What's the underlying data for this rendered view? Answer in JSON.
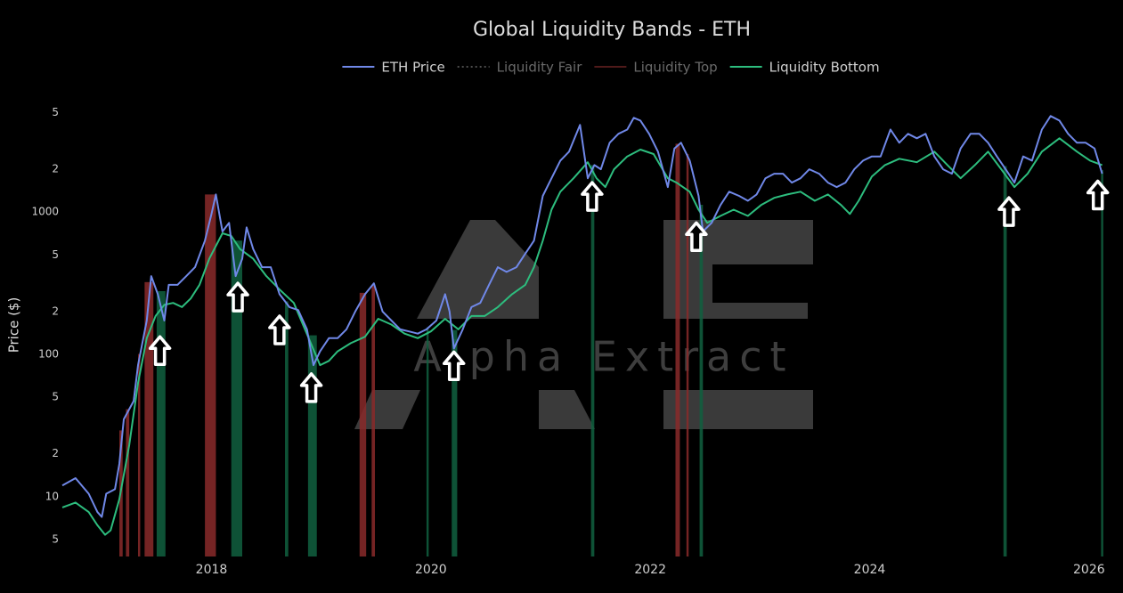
{
  "chart_data": {
    "type": "line",
    "title": "Global Liquidity Bands - ETH",
    "y_label": "Price ($)",
    "watermark": "Alpha Extract",
    "ylog": true,
    "grid": false,
    "legend": "top",
    "xlim": [
      2016.64,
      2026.18
    ],
    "xticks": [
      2018,
      2020,
      2022,
      2024,
      2026
    ],
    "ylim": [
      3.8,
      5900
    ],
    "yticks": [
      5,
      10,
      {
        "value": 20,
        "label": "2"
      },
      {
        "value": 50,
        "label": "5"
      },
      100,
      {
        "value": 200,
        "label": "2"
      },
      {
        "value": 500,
        "label": "5"
      },
      1000,
      {
        "value": 2000,
        "label": "2"
      },
      {
        "value": 5000,
        "label": "5"
      }
    ],
    "series": [
      {
        "name": "ETH Price",
        "color": "#7088e8",
        "x": [
          2016.64,
          2016.76,
          2016.88,
          2016.96,
          2017.0,
          2017.04,
          2017.12,
          2017.16,
          2017.2,
          2017.29,
          2017.33,
          2017.41,
          2017.45,
          2017.51,
          2017.57,
          2017.61,
          2017.69,
          2017.77,
          2017.85,
          2017.94,
          2018.0,
          2018.04,
          2018.1,
          2018.16,
          2018.22,
          2018.28,
          2018.32,
          2018.38,
          2018.46,
          2018.54,
          2018.62,
          2018.71,
          2018.79,
          2018.87,
          2018.93,
          2018.99,
          2019.07,
          2019.15,
          2019.23,
          2019.31,
          2019.4,
          2019.48,
          2019.56,
          2019.64,
          2019.72,
          2019.8,
          2019.88,
          2019.96,
          2020.05,
          2020.13,
          2020.17,
          2020.21,
          2020.29,
          2020.37,
          2020.45,
          2020.53,
          2020.61,
          2020.69,
          2020.78,
          2020.86,
          2020.94,
          2021.02,
          2021.1,
          2021.18,
          2021.26,
          2021.36,
          2021.43,
          2021.49,
          2021.55,
          2021.63,
          2021.71,
          2021.79,
          2021.85,
          2021.91,
          2021.99,
          2022.07,
          2022.16,
          2022.22,
          2022.28,
          2022.36,
          2022.44,
          2022.48,
          2022.56,
          2022.64,
          2022.72,
          2022.81,
          2022.89,
          2022.97,
          2023.05,
          2023.13,
          2023.21,
          2023.29,
          2023.37,
          2023.45,
          2023.54,
          2023.62,
          2023.7,
          2023.78,
          2023.86,
          2023.94,
          2024.02,
          2024.1,
          2024.19,
          2024.27,
          2024.35,
          2024.43,
          2024.51,
          2024.59,
          2024.67,
          2024.75,
          2024.83,
          2024.92,
          2025.0,
          2025.08,
          2025.16,
          2025.24,
          2025.32,
          2025.4,
          2025.48,
          2025.57,
          2025.65,
          2025.73,
          2025.81,
          2025.89,
          2025.97,
          2026.05,
          2026.12
        ],
        "values": [
          12,
          13.5,
          10.5,
          7.8,
          7.2,
          10.5,
          11.3,
          17,
          35,
          47,
          84,
          173,
          355,
          265,
          173,
          308,
          308,
          355,
          410,
          630,
          970,
          1330,
          730,
          840,
          355,
          470,
          780,
          550,
          410,
          410,
          265,
          215,
          205,
          150,
          84,
          105,
          130,
          130,
          150,
          200,
          265,
          316,
          200,
          173,
          150,
          145,
          140,
          150,
          173,
          265,
          200,
          110,
          150,
          215,
          230,
          308,
          410,
          380,
          410,
          510,
          630,
          1300,
          1730,
          2300,
          2660,
          4100,
          1730,
          2140,
          2000,
          3070,
          3550,
          3800,
          4600,
          4400,
          3550,
          2660,
          1500,
          2800,
          3070,
          2300,
          1300,
          730,
          840,
          1120,
          1390,
          1300,
          1200,
          1330,
          1730,
          1860,
          1860,
          1610,
          1730,
          2000,
          1860,
          1610,
          1500,
          1610,
          2000,
          2300,
          2460,
          2460,
          3800,
          3070,
          3550,
          3300,
          3550,
          2460,
          2000,
          1860,
          2800,
          3550,
          3550,
          3070,
          2460,
          2000,
          1610,
          2460,
          2300,
          3800,
          4730,
          4400,
          3550,
          3070,
          3070,
          2800,
          1860
        ]
      },
      {
        "name": "Liquidity Fair",
        "color": "#9a9a9a",
        "dash": "dot",
        "visible": "legendonly"
      },
      {
        "name": "Liquidity Top",
        "color": "#a03434",
        "visible": "legendonly"
      },
      {
        "name": "Liquidity Bottom",
        "color": "#2dbd7e",
        "x": [
          2016.64,
          2016.76,
          2016.88,
          2016.96,
          2017.03,
          2017.08,
          2017.16,
          2017.25,
          2017.33,
          2017.41,
          2017.49,
          2017.57,
          2017.65,
          2017.73,
          2017.81,
          2017.89,
          2017.98,
          2018.1,
          2018.18,
          2018.26,
          2018.38,
          2018.5,
          2018.62,
          2018.75,
          2018.87,
          2018.99,
          2019.07,
          2019.15,
          2019.27,
          2019.4,
          2019.52,
          2019.64,
          2019.76,
          2019.88,
          2020.0,
          2020.13,
          2020.25,
          2020.37,
          2020.49,
          2020.61,
          2020.74,
          2020.86,
          2020.94,
          2021.02,
          2021.1,
          2021.18,
          2021.3,
          2021.43,
          2021.51,
          2021.59,
          2021.67,
          2021.79,
          2021.91,
          2022.03,
          2022.16,
          2022.24,
          2022.36,
          2022.44,
          2022.52,
          2022.64,
          2022.76,
          2022.89,
          2023.01,
          2023.13,
          2023.25,
          2023.37,
          2023.5,
          2023.62,
          2023.74,
          2023.82,
          2023.9,
          2024.02,
          2024.14,
          2024.27,
          2024.43,
          2024.59,
          2024.71,
          2024.83,
          2024.96,
          2025.08,
          2025.2,
          2025.32,
          2025.44,
          2025.57,
          2025.73,
          2025.89,
          2026.01,
          2026.12
        ],
        "values": [
          8.4,
          9.1,
          7.8,
          6.3,
          5.4,
          5.8,
          9.6,
          23,
          63,
          130,
          186,
          223,
          230,
          215,
          247,
          308,
          470,
          710,
          680,
          550,
          470,
          355,
          286,
          230,
          139,
          84,
          90,
          105,
          120,
          133,
          178,
          162,
          140,
          130,
          145,
          178,
          150,
          186,
          186,
          215,
          265,
          308,
          410,
          630,
          1040,
          1390,
          1730,
          2240,
          1730,
          1500,
          2000,
          2460,
          2750,
          2560,
          1730,
          1610,
          1390,
          1040,
          840,
          940,
          1040,
          940,
          1120,
          1260,
          1330,
          1390,
          1200,
          1330,
          1120,
          970,
          1200,
          1780,
          2140,
          2370,
          2240,
          2660,
          2140,
          1730,
          2140,
          2660,
          2000,
          1500,
          1860,
          2660,
          3300,
          2660,
          2300,
          2140
        ]
      }
    ],
    "top_signals": {
      "color": "#8a2a2a",
      "ranges": [
        [
          2017.16,
          2017.19
        ],
        [
          2017.22,
          2017.25
        ],
        [
          2017.33,
          2017.35
        ],
        [
          2017.39,
          2017.47
        ],
        [
          2017.94,
          2018.04
        ],
        [
          2019.35,
          2019.41
        ],
        [
          2019.46,
          2019.49
        ],
        [
          2022.23,
          2022.27
        ],
        [
          2022.33,
          2022.35
        ]
      ]
    },
    "bottom_signals": {
      "color": "#106040",
      "ranges": [
        [
          2017.5,
          2017.58
        ],
        [
          2018.18,
          2018.28
        ],
        [
          2018.67,
          2018.7
        ],
        [
          2018.88,
          2018.96
        ],
        [
          2019.96,
          2019.98
        ],
        [
          2020.19,
          2020.24
        ],
        [
          2021.46,
          2021.49
        ],
        [
          2022.45,
          2022.48
        ],
        [
          2025.22,
          2025.25
        ],
        [
          2026.11,
          2026.13
        ]
      ]
    },
    "arrows": [
      {
        "x": 2017.53,
        "y": 133
      },
      {
        "x": 2018.24,
        "y": 316
      },
      {
        "x": 2018.62,
        "y": 186
      },
      {
        "x": 2018.91,
        "y": 73
      },
      {
        "x": 2020.21,
        "y": 104
      },
      {
        "x": 2021.47,
        "y": 1610
      },
      {
        "x": 2022.42,
        "y": 840
      },
      {
        "x": 2025.27,
        "y": 1260
      },
      {
        "x": 2026.08,
        "y": 1650
      }
    ]
  }
}
